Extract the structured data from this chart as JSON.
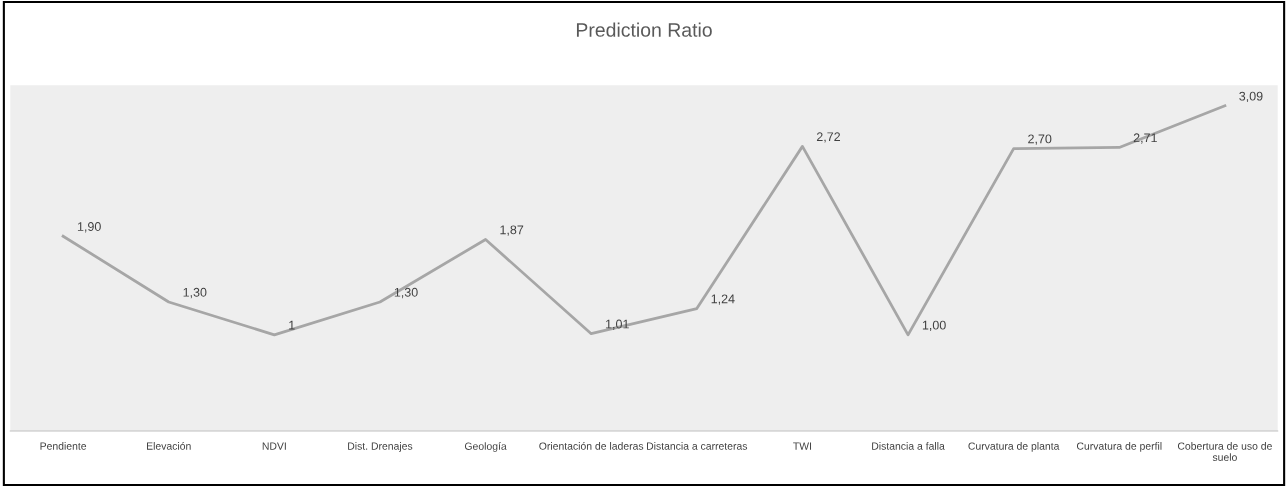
{
  "chart_data": {
    "type": "line",
    "title": "Prediction Ratio",
    "categories": [
      "Pendiente",
      "Elevación",
      "NDVI",
      "Dist. Drenajes",
      "Geología",
      "Orientación de laderas",
      "Distancia a carreteras",
      "TWI",
      "Distancia a falla",
      "Curvatura de planta",
      "Curvatura de perfil",
      "Cobertura de uso de\nsuelo"
    ],
    "series": [
      {
        "color": "#a6a6a6",
        "values": [
          1.9,
          1.3,
          1,
          1.3,
          1.87,
          1.01,
          1.24,
          2.72,
          1.0,
          2.7,
          2.71,
          3.09
        ],
        "value_labels": [
          "1,90",
          "1,30",
          "1",
          "1,30",
          "1,87",
          "1,01",
          "1,24",
          "2,72",
          "1,00",
          "2,70",
          "2,71",
          "3,09"
        ]
      }
    ],
    "grid": false,
    "marker": "none",
    "line_style": "solid"
  }
}
